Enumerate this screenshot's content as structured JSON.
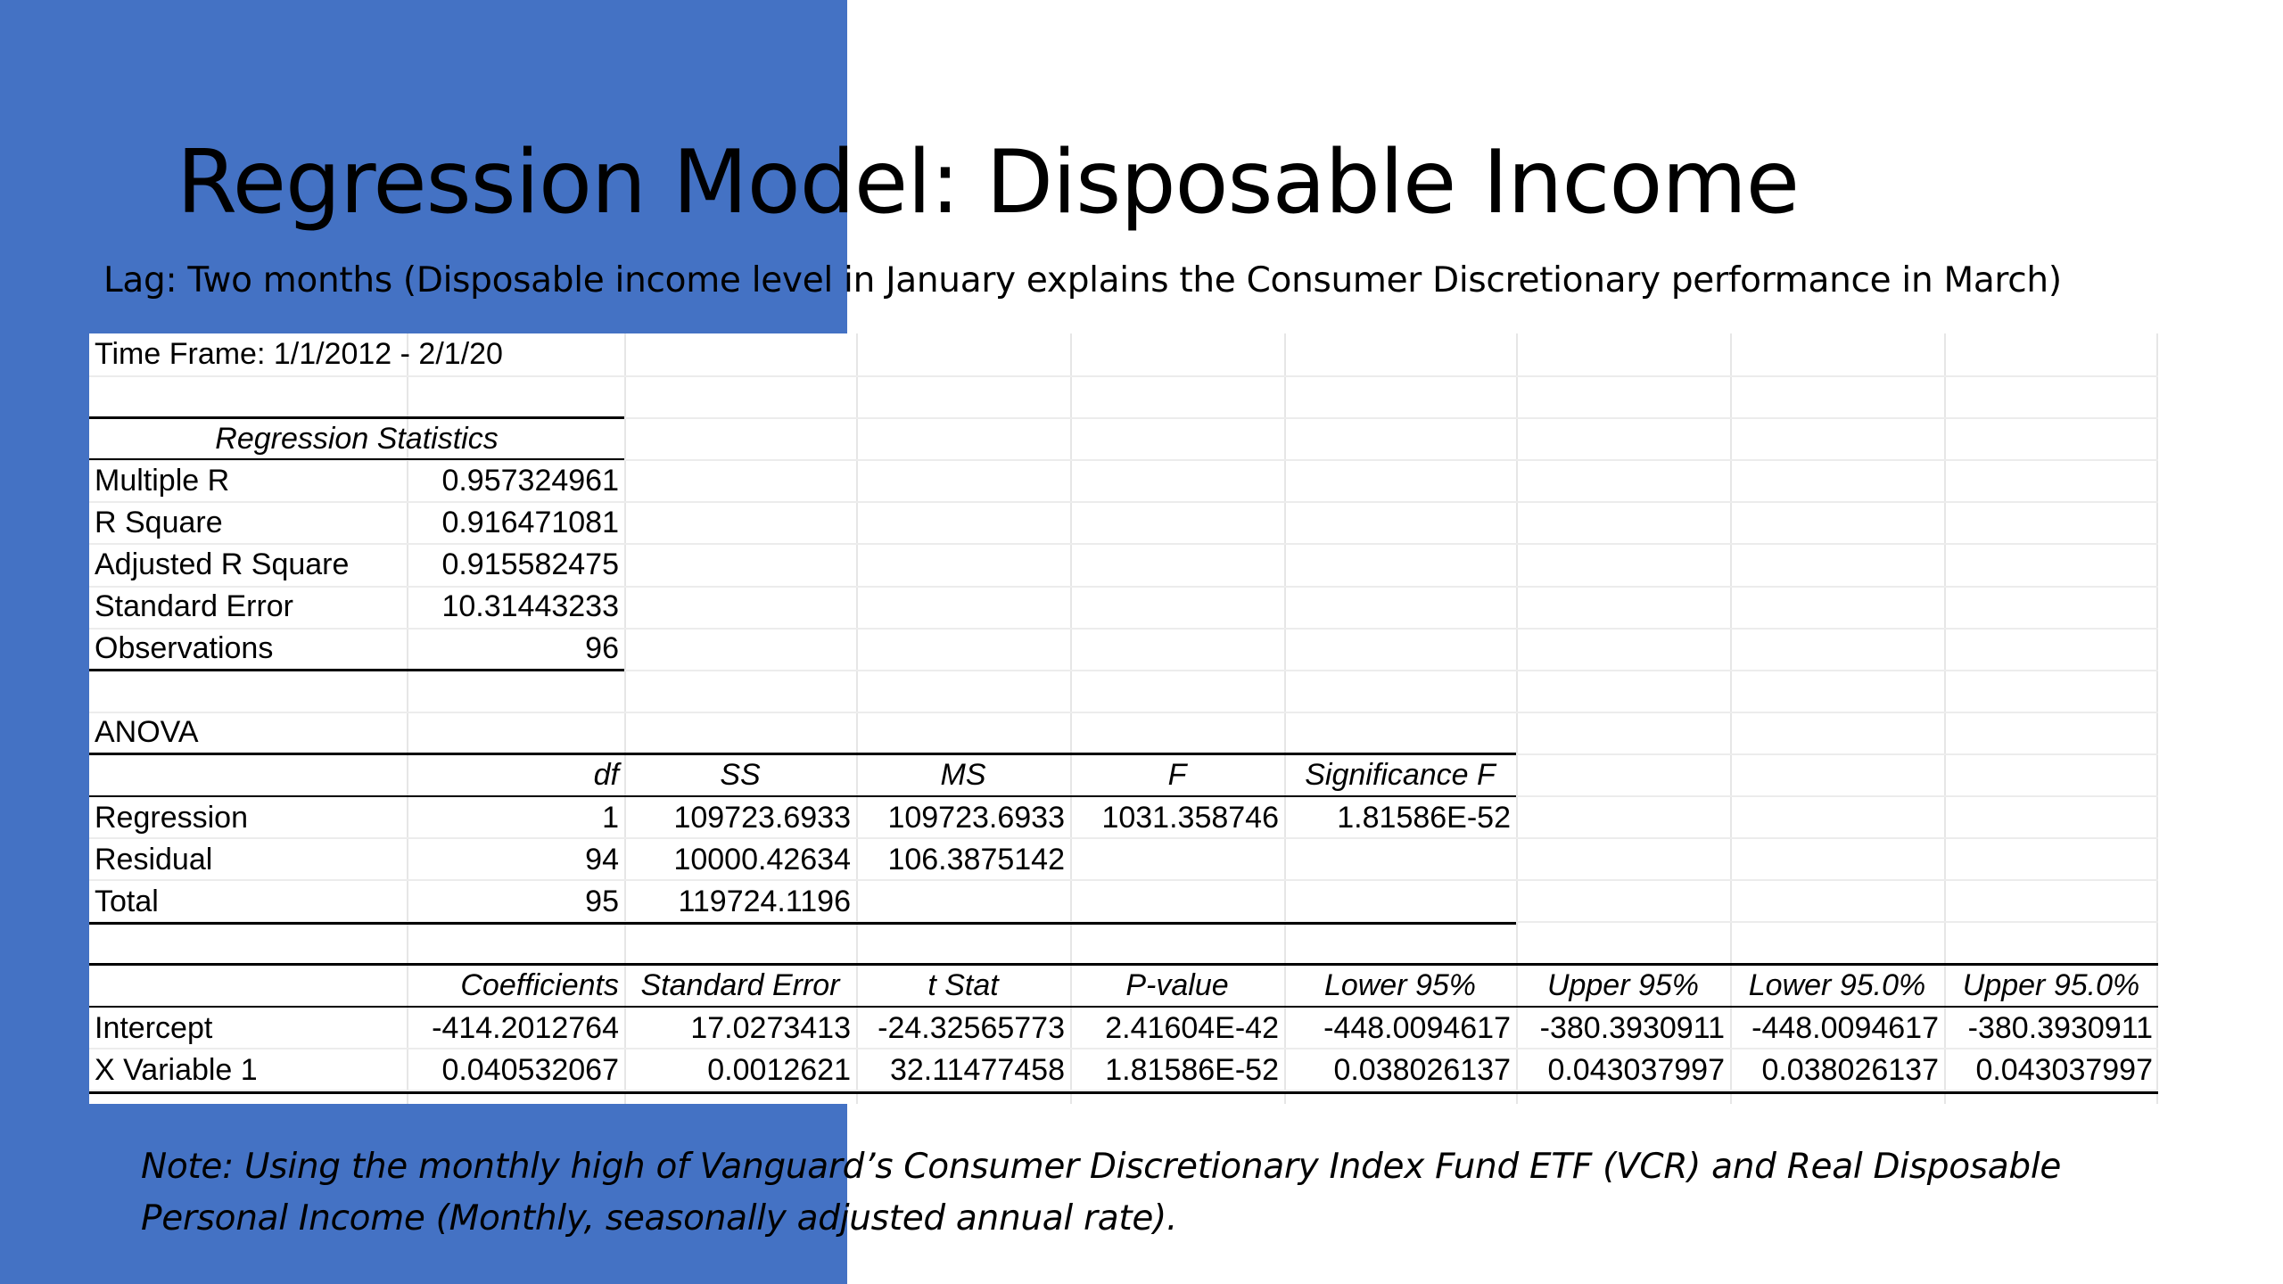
{
  "title": "Regression Model: Disposable Income",
  "subtitle": "Lag: Two months (Disposable income level in January explains the Consumer Discretionary performance in March)",
  "time_frame": "Time Frame: 1/1/2012 - 2/1/20",
  "regression_statistics": {
    "header": "Regression Statistics",
    "rows": [
      {
        "label": "Multiple R",
        "value": "0.957324961"
      },
      {
        "label": "R Square",
        "value": "0.916471081"
      },
      {
        "label": "Adjusted R Square",
        "value": "0.915582475"
      },
      {
        "label": "Standard Error",
        "value": "10.31443233"
      },
      {
        "label": "Observations",
        "value": "96"
      }
    ]
  },
  "anova": {
    "label": "ANOVA",
    "headers": [
      "",
      "df",
      "SS",
      "MS",
      "F",
      "Significance F"
    ],
    "rows": [
      [
        "Regression",
        "1",
        "109723.6933",
        "109723.6933",
        "1031.358746",
        "1.81586E-52"
      ],
      [
        "Residual",
        "94",
        "10000.42634",
        "106.3875142",
        "",
        ""
      ],
      [
        "Total",
        "95",
        "119724.1196",
        "",
        "",
        ""
      ]
    ]
  },
  "coefficients": {
    "headers": [
      "",
      "Coefficients",
      "Standard Error",
      "t Stat",
      "P-value",
      "Lower 95%",
      "Upper 95%",
      "Lower 95.0%",
      "Upper 95.0%"
    ],
    "rows": [
      [
        "Intercept",
        "-414.2012764",
        "17.0273413",
        "-24.32565773",
        "2.41604E-42",
        "-448.0094617",
        "-380.3930911",
        "-448.0094617",
        "-380.3930911"
      ],
      [
        "X Variable 1",
        "0.040532067",
        "0.0012621",
        "32.11477458",
        "1.81586E-52",
        "0.038026137",
        "0.043037997",
        "0.038026137",
        "0.043037997"
      ]
    ]
  },
  "note": {
    "line1": "Note: Using the monthly high of Vanguard’s Consumer Discretionary Index Fund ETF (VCR) and Real Disposable",
    "line2": "Personal Income (Monthly, seasonally adjusted annual rate)."
  },
  "colors": {
    "panel": "#4472C4",
    "text": "#000000",
    "gridline": "#e6e6e6"
  }
}
